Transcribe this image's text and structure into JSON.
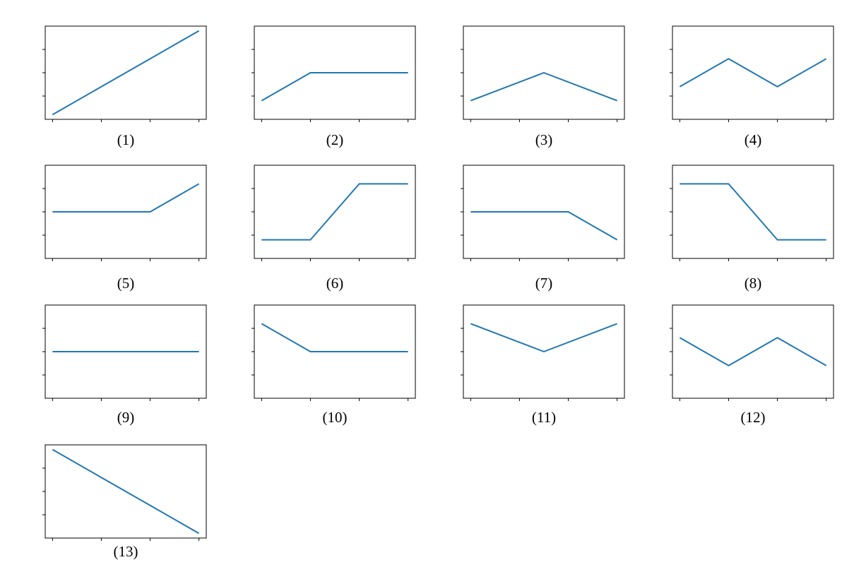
{
  "chart_data": [
    {
      "type": "line",
      "xlabel": "(1)",
      "x": [
        0,
        1,
        2,
        3
      ],
      "values": [
        -1.8,
        -0.6,
        0.6,
        1.8
      ],
      "color": "#1f77b4",
      "xlim": [
        -0.15,
        3.15
      ],
      "ylim": [
        -2,
        2
      ],
      "xticks": [
        0,
        1,
        2,
        3
      ],
      "yticks": [
        -1,
        0,
        1
      ]
    },
    {
      "type": "line",
      "xlabel": "(2)",
      "x": [
        0,
        1,
        2,
        3
      ],
      "values": [
        -1.2,
        0,
        0,
        0
      ],
      "color": "#1f77b4",
      "xlim": [
        -0.15,
        3.15
      ],
      "ylim": [
        -2,
        2
      ],
      "xticks": [
        0,
        1,
        2,
        3
      ],
      "yticks": [
        -1,
        0,
        1
      ]
    },
    {
      "type": "line",
      "xlabel": "(3)",
      "x": [
        0,
        1.5,
        3
      ],
      "values": [
        -1.2,
        0,
        -1.2
      ],
      "color": "#1f77b4",
      "xlim": [
        -0.15,
        3.15
      ],
      "ylim": [
        -2,
        2
      ],
      "xticks": [
        0,
        1,
        2,
        3
      ],
      "yticks": [
        -1,
        0,
        1
      ]
    },
    {
      "type": "line",
      "xlabel": "(4)",
      "x": [
        0,
        1,
        2,
        3
      ],
      "values": [
        -0.6,
        0.6,
        -0.6,
        0.6
      ],
      "color": "#1f77b4",
      "xlim": [
        -0.15,
        3.15
      ],
      "ylim": [
        -2,
        2
      ],
      "xticks": [
        0,
        1,
        2,
        3
      ],
      "yticks": [
        -1,
        0,
        1
      ]
    },
    {
      "type": "line",
      "xlabel": "(5)",
      "x": [
        0,
        1,
        2,
        3
      ],
      "values": [
        0,
        0,
        0,
        1.2
      ],
      "color": "#1f77b4",
      "xlim": [
        -0.15,
        3.15
      ],
      "ylim": [
        -2,
        2
      ],
      "xticks": [
        0,
        1,
        2,
        3
      ],
      "yticks": [
        -1,
        0,
        1
      ]
    },
    {
      "type": "line",
      "xlabel": "(6)",
      "x": [
        0,
        1,
        2,
        3
      ],
      "values": [
        -1.2,
        -1.2,
        1.2,
        1.2
      ],
      "color": "#1f77b4",
      "xlim": [
        -0.15,
        3.15
      ],
      "ylim": [
        -2,
        2
      ],
      "xticks": [
        0,
        1,
        2,
        3
      ],
      "yticks": [
        -1,
        0,
        1
      ]
    },
    {
      "type": "line",
      "xlabel": "(7)",
      "x": [
        0,
        1,
        2,
        3
      ],
      "values": [
        0,
        0,
        0,
        -1.2
      ],
      "color": "#1f77b4",
      "xlim": [
        -0.15,
        3.15
      ],
      "ylim": [
        -2,
        2
      ],
      "xticks": [
        0,
        1,
        2,
        3
      ],
      "yticks": [
        -1,
        0,
        1
      ]
    },
    {
      "type": "line",
      "xlabel": "(8)",
      "x": [
        0,
        1,
        2,
        3
      ],
      "values": [
        1.2,
        1.2,
        -1.2,
        -1.2
      ],
      "color": "#1f77b4",
      "xlim": [
        -0.15,
        3.15
      ],
      "ylim": [
        -2,
        2
      ],
      "xticks": [
        0,
        1,
        2,
        3
      ],
      "yticks": [
        -1,
        0,
        1
      ]
    },
    {
      "type": "line",
      "xlabel": "(9)",
      "x": [
        0,
        1,
        2,
        3
      ],
      "values": [
        0,
        0,
        0,
        0
      ],
      "color": "#1f77b4",
      "xlim": [
        -0.15,
        3.15
      ],
      "ylim": [
        -2,
        2
      ],
      "xticks": [
        0,
        1,
        2,
        3
      ],
      "yticks": [
        -1,
        0,
        1
      ]
    },
    {
      "type": "line",
      "xlabel": "(10)",
      "x": [
        0,
        1,
        2,
        3
      ],
      "values": [
        1.2,
        0,
        0,
        0
      ],
      "color": "#1f77b4",
      "xlim": [
        -0.15,
        3.15
      ],
      "ylim": [
        -2,
        2
      ],
      "xticks": [
        0,
        1,
        2,
        3
      ],
      "yticks": [
        -1,
        0,
        1
      ]
    },
    {
      "type": "line",
      "xlabel": "(11)",
      "x": [
        0,
        1.5,
        3
      ],
      "values": [
        1.2,
        0,
        1.2
      ],
      "color": "#1f77b4",
      "xlim": [
        -0.15,
        3.15
      ],
      "ylim": [
        -2,
        2
      ],
      "xticks": [
        0,
        1,
        2,
        3
      ],
      "yticks": [
        -1,
        0,
        1
      ]
    },
    {
      "type": "line",
      "xlabel": "(12)",
      "x": [
        0,
        1,
        2,
        3
      ],
      "values": [
        0.6,
        -0.6,
        0.6,
        -0.6
      ],
      "color": "#1f77b4",
      "xlim": [
        -0.15,
        3.15
      ],
      "ylim": [
        -2,
        2
      ],
      "xticks": [
        0,
        1,
        2,
        3
      ],
      "yticks": [
        -1,
        0,
        1
      ]
    },
    {
      "type": "line",
      "xlabel": "(13)",
      "x": [
        0,
        1,
        2,
        3
      ],
      "values": [
        1.8,
        0.6,
        -0.6,
        -1.8
      ],
      "color": "#1f77b4",
      "xlim": [
        -0.15,
        3.15
      ],
      "ylim": [
        -2,
        2
      ],
      "xticks": [
        0,
        1,
        2,
        3
      ],
      "yticks": [
        -1,
        0,
        1
      ]
    }
  ]
}
